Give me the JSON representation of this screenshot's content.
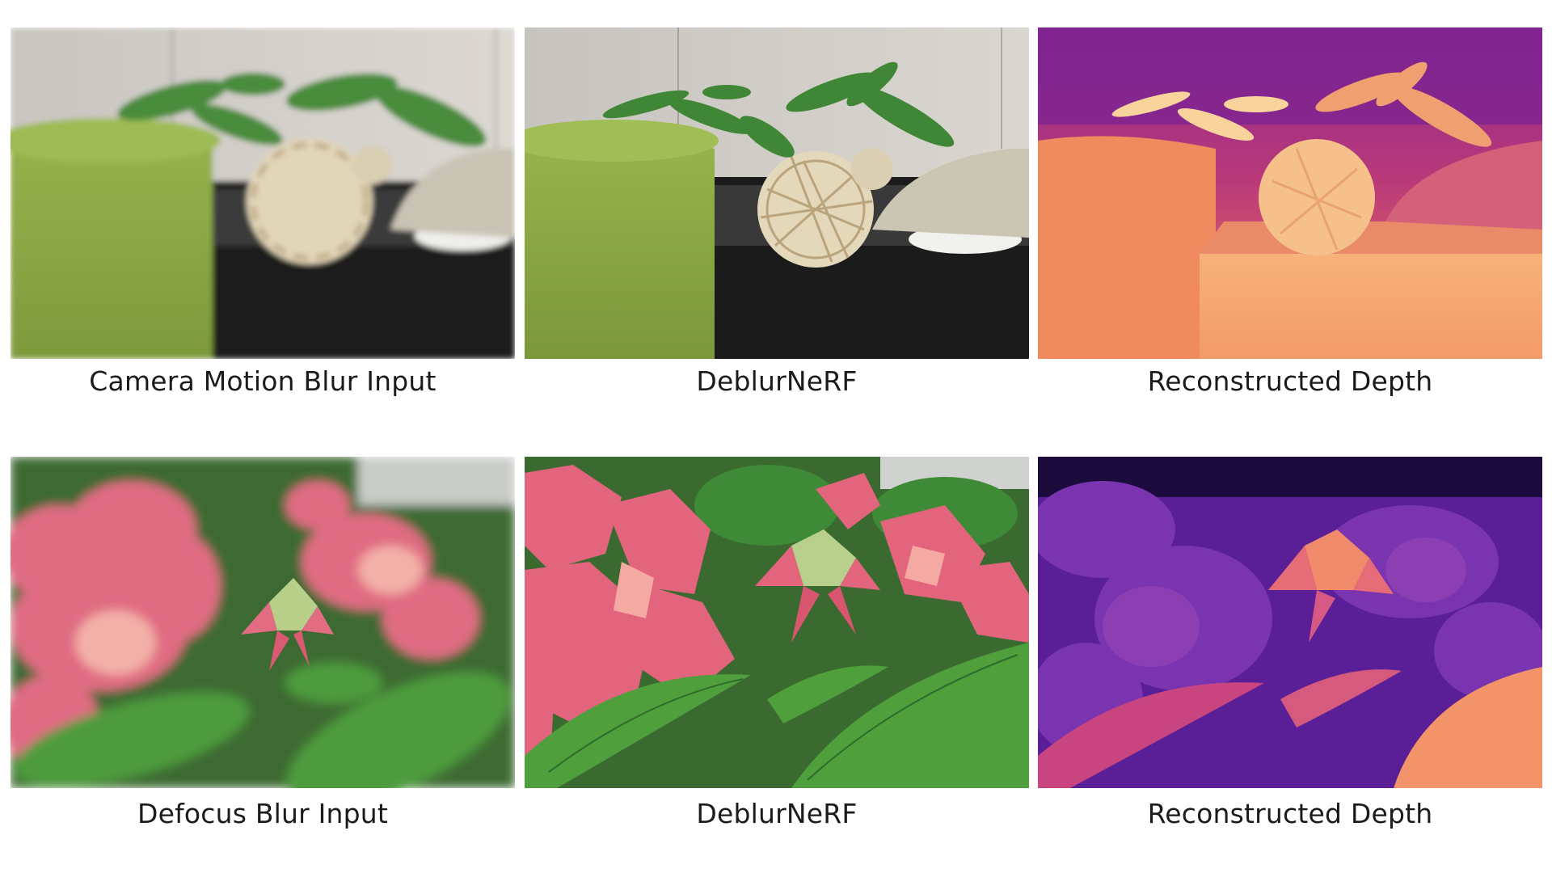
{
  "figure": {
    "rows": [
      {
        "panels": [
          {
            "caption": "Camera Motion Blur Input",
            "scene": "plant-pot-motion-blur"
          },
          {
            "caption": "DeblurNeRF",
            "scene": "plant-pot-deblurred"
          },
          {
            "caption": "Reconstructed Depth",
            "scene": "plant-pot-depth"
          }
        ]
      },
      {
        "panels": [
          {
            "caption": "Defocus Blur Input",
            "scene": "flowers-defocus-blur"
          },
          {
            "caption": "DeblurNeRF",
            "scene": "flowers-deblurred"
          },
          {
            "caption": "Reconstructed Depth",
            "scene": "flowers-depth"
          }
        ]
      }
    ]
  },
  "colors": {
    "background": "#ffffff",
    "caption_text": "#1b1b1b",
    "stool_green": "#8aa845",
    "foliage_green": "#3f8a3a",
    "flower_pink": "#e0627a",
    "depth_far": "#5b1a8c",
    "depth_near": "#f6c08a"
  }
}
